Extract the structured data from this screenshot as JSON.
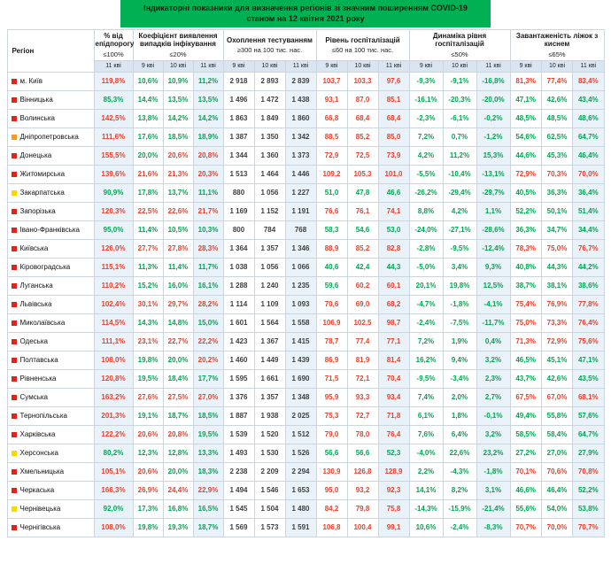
{
  "title": {
    "line1": "Індикаторні показники для визначення регіонів зі значним поширенням COVID-19",
    "line2": "станом на 12 квітня 2021 року"
  },
  "colors": {
    "banner": "#00b052",
    "green": "#00a651",
    "red": "#e8402a",
    "dark": "#3f3f3f",
    "highlight_col_bg": "#e9f1f9",
    "subheader_bg": "#d9e6f2",
    "zone_red": "#e2231a",
    "zone_orange": "#f59b1d",
    "zone_yellow": "#ffd500"
  },
  "rules": {
    "epid": 100,
    "detect": 20,
    "hosp": 60,
    "dyn": 50,
    "beds": 65
  },
  "columns": [
    {
      "key": "region",
      "label": "Регіон",
      "threshold": "",
      "dates": []
    },
    {
      "key": "epid",
      "label": "% від епідпорогу",
      "threshold": "≤100%",
      "dates": [
        "11 кві"
      ]
    },
    {
      "key": "detect",
      "label": "Коефіцієнт виявлення випадків інфікування",
      "threshold": "≤20%",
      "dates": [
        "9 кві",
        "10 кві",
        "11 кві"
      ]
    },
    {
      "key": "test",
      "label": "Охоплення тестуванням",
      "threshold": "≥300 на 100 тис. нас.",
      "dates": [
        "9 кві",
        "10 кві",
        "11 кві"
      ]
    },
    {
      "key": "hosp",
      "label": "Рівень госпіталізацій",
      "threshold": "≤60 на 100 тис. нас.",
      "dates": [
        "9 кві",
        "10 кві",
        "11 кві"
      ]
    },
    {
      "key": "dyn",
      "label": "Динаміка рівня госпіталізацій",
      "threshold": "≤50%",
      "dates": [
        "9 кві",
        "10 кві",
        "11 кві"
      ]
    },
    {
      "key": "beds",
      "label": "Завантаженість ліжок з киснем",
      "threshold": "≤65%",
      "dates": [
        "9 кві",
        "10 кві",
        "11 кві"
      ]
    }
  ],
  "rows": [
    {
      "region": "м. Київ",
      "zone": "red",
      "epid": [
        "119,8%"
      ],
      "detect": [
        "10,6%",
        "10,9%",
        "11,2%"
      ],
      "test": [
        "2 918",
        "2 893",
        "2 839"
      ],
      "hosp": [
        "103,7",
        "103,3",
        "97,6"
      ],
      "dyn": [
        "-9,3%",
        "-9,1%",
        "-16,8%"
      ],
      "beds": [
        "81,3%",
        "77,4%",
        "83,4%"
      ]
    },
    {
      "region": "Вінницька",
      "zone": "red",
      "epid": [
        "85,3%"
      ],
      "detect": [
        "14,4%",
        "13,5%",
        "13,5%"
      ],
      "test": [
        "1 496",
        "1 472",
        "1 438"
      ],
      "hosp": [
        "93,1",
        "87,0",
        "85,1"
      ],
      "dyn": [
        "-16,1%",
        "-20,3%",
        "-20,0%"
      ],
      "beds": [
        "47,1%",
        "42,6%",
        "43,4%"
      ]
    },
    {
      "region": "Волинська",
      "zone": "red",
      "epid": [
        "142,5%"
      ],
      "detect": [
        "13,8%",
        "14,2%",
        "14,2%"
      ],
      "test": [
        "1 863",
        "1 849",
        "1 860"
      ],
      "hosp": [
        "66,8",
        "68,4",
        "68,4"
      ],
      "dyn": [
        "-2,3%",
        "-6,1%",
        "-0,2%"
      ],
      "beds": [
        "48,5%",
        "48,5%",
        "48,6%"
      ]
    },
    {
      "region": "Дніпропетровська",
      "zone": "orange",
      "epid": [
        "111,6%"
      ],
      "detect": [
        "17,6%",
        "18,5%",
        "18,9%"
      ],
      "test": [
        "1 387",
        "1 350",
        "1 342"
      ],
      "hosp": [
        "88,5",
        "85,2",
        "85,0"
      ],
      "dyn": [
        "7,2%",
        "0,7%",
        "-1,2%"
      ],
      "beds": [
        "54,6%",
        "62,5%",
        "64,7%"
      ]
    },
    {
      "region": "Донецька",
      "zone": "red",
      "epid": [
        "155,5%"
      ],
      "detect": [
        "20,0%",
        "20,6%",
        "20,8%"
      ],
      "test": [
        "1 344",
        "1 360",
        "1 373"
      ],
      "hosp": [
        "72,9",
        "72,5",
        "73,9"
      ],
      "dyn": [
        "4,2%",
        "11,2%",
        "15,3%"
      ],
      "beds": [
        "44,6%",
        "45,3%",
        "46,4%"
      ]
    },
    {
      "region": "Житомирська",
      "zone": "red",
      "epid": [
        "139,6%"
      ],
      "detect": [
        "21,6%",
        "21,3%",
        "20,3%"
      ],
      "test": [
        "1 513",
        "1 464",
        "1 446"
      ],
      "hosp": [
        "109,2",
        "105,3",
        "101,0"
      ],
      "dyn": [
        "-5,5%",
        "-10,4%",
        "-13,1%"
      ],
      "beds": [
        "72,9%",
        "70,3%",
        "70,0%"
      ]
    },
    {
      "region": "Закарпатська",
      "zone": "yellow",
      "epid": [
        "90,9%"
      ],
      "detect": [
        "17,8%",
        "13,7%",
        "11,1%"
      ],
      "test": [
        "880",
        "1 056",
        "1 227"
      ],
      "hosp": [
        "51,0",
        "47,8",
        "46,6"
      ],
      "dyn": [
        "-26,2%",
        "-29,4%",
        "-29,7%"
      ],
      "beds": [
        "40,5%",
        "36,3%",
        "36,4%"
      ]
    },
    {
      "region": "Запорізька",
      "zone": "red",
      "epid": [
        "120,3%"
      ],
      "detect": [
        "22,5%",
        "22,6%",
        "21,7%"
      ],
      "test": [
        "1 169",
        "1 152",
        "1 191"
      ],
      "hosp": [
        "76,6",
        "76,1",
        "74,1"
      ],
      "dyn": [
        "8,8%",
        "4,2%",
        "1,1%"
      ],
      "beds": [
        "52,2%",
        "50,1%",
        "51,4%"
      ]
    },
    {
      "region": "Івано-Франківська",
      "zone": "red",
      "epid": [
        "95,0%"
      ],
      "detect": [
        "11,4%",
        "10,5%",
        "10,3%"
      ],
      "test": [
        "800",
        "784",
        "768"
      ],
      "hosp": [
        "58,3",
        "54,6",
        "53,0"
      ],
      "dyn": [
        "-24,0%",
        "-27,1%",
        "-28,6%"
      ],
      "beds": [
        "36,3%",
        "34,7%",
        "34,4%"
      ]
    },
    {
      "region": "Київська",
      "zone": "red",
      "epid": [
        "126,0%"
      ],
      "detect": [
        "27,7%",
        "27,8%",
        "28,3%"
      ],
      "test": [
        "1 364",
        "1 357",
        "1 346"
      ],
      "hosp": [
        "88,9",
        "85,2",
        "82,8"
      ],
      "dyn": [
        "-2,8%",
        "-9,5%",
        "-12,4%"
      ],
      "beds": [
        "78,3%",
        "75,0%",
        "76,7%"
      ]
    },
    {
      "region": "Кіровоградська",
      "zone": "red",
      "epid": [
        "115,1%"
      ],
      "detect": [
        "11,3%",
        "11,4%",
        "11,7%"
      ],
      "test": [
        "1 038",
        "1 056",
        "1 066"
      ],
      "hosp": [
        "40,6",
        "42,4",
        "44,3"
      ],
      "dyn": [
        "-5,0%",
        "3,4%",
        "9,3%"
      ],
      "beds": [
        "40,8%",
        "44,3%",
        "44,2%"
      ]
    },
    {
      "region": "Луганська",
      "zone": "red",
      "epid": [
        "110,2%"
      ],
      "detect": [
        "15,2%",
        "16,0%",
        "16,1%"
      ],
      "test": [
        "1 288",
        "1 240",
        "1 235"
      ],
      "hosp": [
        "59,6",
        "60,2",
        "60,1"
      ],
      "dyn": [
        "20,1%",
        "19,8%",
        "12,5%"
      ],
      "beds": [
        "38,7%",
        "38,1%",
        "38,6%"
      ]
    },
    {
      "region": "Львівська",
      "zone": "red",
      "epid": [
        "102,4%"
      ],
      "detect": [
        "30,1%",
        "29,7%",
        "28,2%"
      ],
      "test": [
        "1 114",
        "1 109",
        "1 093"
      ],
      "hosp": [
        "70,6",
        "69,0",
        "68,2"
      ],
      "dyn": [
        "-4,7%",
        "-1,8%",
        "-4,1%"
      ],
      "beds": [
        "75,4%",
        "76,9%",
        "77,8%"
      ]
    },
    {
      "region": "Миколаївська",
      "zone": "red",
      "epid": [
        "114,5%"
      ],
      "detect": [
        "14,3%",
        "14,8%",
        "15,0%"
      ],
      "test": [
        "1 601",
        "1 564",
        "1 558"
      ],
      "hosp": [
        "106,9",
        "102,5",
        "98,7"
      ],
      "dyn": [
        "-2,4%",
        "-7,5%",
        "-11,7%"
      ],
      "beds": [
        "75,0%",
        "73,3%",
        "76,4%"
      ]
    },
    {
      "region": "Одеська",
      "zone": "red",
      "epid": [
        "111,1%"
      ],
      "detect": [
        "23,1%",
        "22,7%",
        "22,2%"
      ],
      "test": [
        "1 423",
        "1 367",
        "1 415"
      ],
      "hosp": [
        "78,7",
        "77,4",
        "77,1"
      ],
      "dyn": [
        "7,2%",
        "1,9%",
        "0,4%"
      ],
      "beds": [
        "71,3%",
        "72,9%",
        "75,6%"
      ]
    },
    {
      "region": "Полтавська",
      "zone": "red",
      "epid": [
        "108,0%"
      ],
      "detect": [
        "19,8%",
        "20,0%",
        "20,2%"
      ],
      "test": [
        "1 460",
        "1 449",
        "1 439"
      ],
      "hosp": [
        "86,9",
        "81,9",
        "81,4"
      ],
      "dyn": [
        "16,2%",
        "9,4%",
        "3,2%"
      ],
      "beds": [
        "46,5%",
        "45,1%",
        "47,1%"
      ]
    },
    {
      "region": "Рівненська",
      "zone": "red",
      "epid": [
        "120,8%"
      ],
      "detect": [
        "19,5%",
        "18,4%",
        "17,7%"
      ],
      "test": [
        "1 595",
        "1 661",
        "1 690"
      ],
      "hosp": [
        "71,5",
        "72,1",
        "70,4"
      ],
      "dyn": [
        "-9,5%",
        "-3,4%",
        "2,3%"
      ],
      "beds": [
        "43,7%",
        "42,6%",
        "43,5%"
      ]
    },
    {
      "region": "Сумська",
      "zone": "red",
      "epid": [
        "163,2%"
      ],
      "detect": [
        "27,6%",
        "27,5%",
        "27,0%"
      ],
      "test": [
        "1 376",
        "1 357",
        "1 348"
      ],
      "hosp": [
        "95,9",
        "93,3",
        "93,4"
      ],
      "dyn": [
        "7,4%",
        "2,0%",
        "2,7%"
      ],
      "beds": [
        "67,5%",
        "67,0%",
        "68,1%"
      ]
    },
    {
      "region": "Тернопільська",
      "zone": "red",
      "epid": [
        "201,3%"
      ],
      "detect": [
        "19,1%",
        "18,7%",
        "18,5%"
      ],
      "test": [
        "1 887",
        "1 938",
        "2 025"
      ],
      "hosp": [
        "75,3",
        "72,7",
        "71,8"
      ],
      "dyn": [
        "6,1%",
        "1,8%",
        "-0,1%"
      ],
      "beds": [
        "49,4%",
        "55,8%",
        "57,6%"
      ]
    },
    {
      "region": "Харківська",
      "zone": "red",
      "epid": [
        "122,2%"
      ],
      "detect": [
        "20,6%",
        "20,8%",
        "19,5%"
      ],
      "test": [
        "1 539",
        "1 520",
        "1 512"
      ],
      "hosp": [
        "79,0",
        "78,0",
        "76,4"
      ],
      "dyn": [
        "7,6%",
        "6,4%",
        "3,2%"
      ],
      "beds": [
        "58,5%",
        "58,4%",
        "64,7%"
      ]
    },
    {
      "region": "Херсонська",
      "zone": "yellow",
      "epid": [
        "80,2%"
      ],
      "detect": [
        "12,3%",
        "12,8%",
        "13,3%"
      ],
      "test": [
        "1 493",
        "1 530",
        "1 526"
      ],
      "hosp": [
        "56,6",
        "56,6",
        "52,3"
      ],
      "dyn": [
        "-4,0%",
        "22,6%",
        "23,2%"
      ],
      "beds": [
        "27,2%",
        "27,0%",
        "27,9%"
      ]
    },
    {
      "region": "Хмельницька",
      "zone": "red",
      "epid": [
        "105,1%"
      ],
      "detect": [
        "20,6%",
        "20,0%",
        "18,3%"
      ],
      "test": [
        "2 238",
        "2 209",
        "2 294"
      ],
      "hosp": [
        "130,9",
        "126,8",
        "128,9"
      ],
      "dyn": [
        "2,2%",
        "-4,3%",
        "-1,8%"
      ],
      "beds": [
        "70,1%",
        "70,6%",
        "70,8%"
      ]
    },
    {
      "region": "Черкаська",
      "zone": "red",
      "epid": [
        "166,3%"
      ],
      "detect": [
        "26,9%",
        "24,4%",
        "22,9%"
      ],
      "test": [
        "1 494",
        "1 546",
        "1 653"
      ],
      "hosp": [
        "95,0",
        "93,2",
        "92,3"
      ],
      "dyn": [
        "14,1%",
        "8,2%",
        "3,1%"
      ],
      "beds": [
        "46,6%",
        "46,4%",
        "52,2%"
      ]
    },
    {
      "region": "Чернівецька",
      "zone": "yellow",
      "epid": [
        "92,0%"
      ],
      "detect": [
        "17,3%",
        "16,8%",
        "16,5%"
      ],
      "test": [
        "1 545",
        "1 504",
        "1 480"
      ],
      "hosp": [
        "84,2",
        "79,8",
        "75,8"
      ],
      "dyn": [
        "-14,3%",
        "-15,9%",
        "-21,4%"
      ],
      "beds": [
        "55,6%",
        "54,0%",
        "53,8%"
      ]
    },
    {
      "region": "Чернігівська",
      "zone": "red",
      "epid": [
        "108,0%"
      ],
      "detect": [
        "19,8%",
        "19,3%",
        "18,7%"
      ],
      "test": [
        "1 569",
        "1 573",
        "1 591"
      ],
      "hosp": [
        "106,8",
        "100,4",
        "99,1"
      ],
      "dyn": [
        "10,6%",
        "-2,4%",
        "-8,3%"
      ],
      "beds": [
        "70,7%",
        "70,0%",
        "70,7%"
      ]
    }
  ]
}
